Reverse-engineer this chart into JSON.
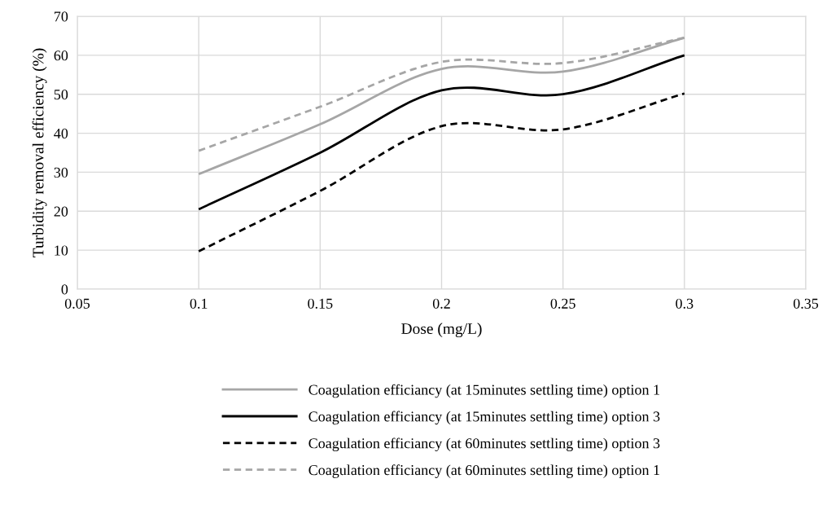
{
  "chart_data": {
    "type": "line",
    "xlabel": "Dose (mg/L)",
    "ylabel": "Turbidity removal efficiency (%)",
    "x": [
      0.1,
      0.15,
      0.2,
      0.25,
      0.3
    ],
    "series": [
      {
        "name": "Coagulation efficiancy (at 15minutes settling time) option 1",
        "color": "#a6a6a6",
        "line_style": "solid",
        "values": [
          29.5,
          42.3,
          56.5,
          55.8,
          64.5
        ]
      },
      {
        "name": "Coagulation efficiancy (at 15minutes settling time) option 3",
        "color": "#000000",
        "line_style": "solid",
        "values": [
          20.5,
          35,
          51,
          50,
          60
        ]
      },
      {
        "name": "Coagulation efficiancy (at 60minutes settling time) option 3",
        "color": "#000000",
        "line_style": "dashed",
        "values": [
          9.7,
          25.2,
          41.8,
          41,
          50.2
        ]
      },
      {
        "name": "Coagulation efficiancy (at 60minutes settling time) option 1",
        "color": "#a6a6a6",
        "line_style": "dashed",
        "values": [
          35.5,
          46.8,
          58.3,
          58,
          64.5
        ]
      }
    ],
    "xlim": [
      0.05,
      0.35
    ],
    "xticks": [
      0.05,
      0.1,
      0.15,
      0.2,
      0.25,
      0.3,
      0.35
    ],
    "ylim": [
      0,
      70
    ],
    "yticks": [
      0,
      10,
      20,
      30,
      40,
      50,
      60,
      70
    ],
    "grid": true,
    "legend": "bottom",
    "marker": "none"
  }
}
